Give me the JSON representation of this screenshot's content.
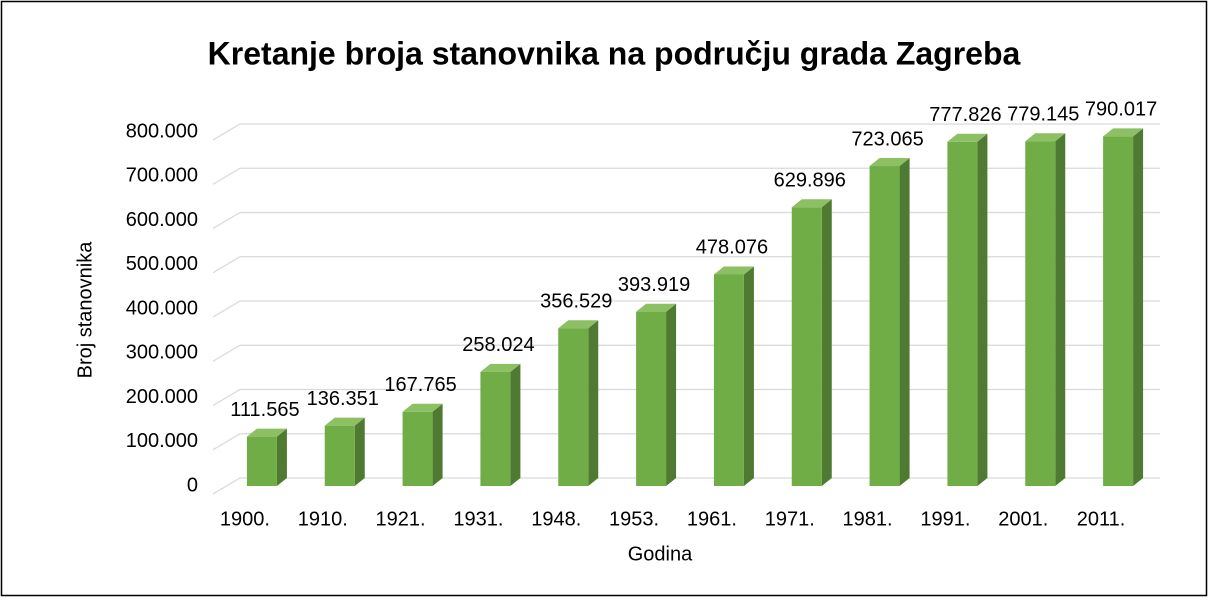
{
  "chart_data": {
    "type": "bar3d",
    "title": "Kretanje broja stanovnika na području grada Zagreba",
    "x_label": "Godina",
    "y_label": "Broj stanovnika",
    "categories": [
      "1900.",
      "1910.",
      "1921.",
      "1931.",
      "1948.",
      "1953.",
      "1961.",
      "1971.",
      "1981.",
      "1991.",
      "2001.",
      "2011."
    ],
    "values": [
      111565,
      136351,
      167765,
      258024,
      356529,
      393919,
      478076,
      629896,
      723065,
      777826,
      779145,
      790017
    ],
    "value_labels": [
      "111.565",
      "136.351",
      "167.765",
      "258.024",
      "356.529",
      "393.919",
      "478.076",
      "629.896",
      "723.065",
      "777.826",
      "779.145",
      "790.017"
    ],
    "color": "#70ad47",
    "ylim": [
      0,
      800000
    ],
    "yticks": [
      0,
      {
        "value": 100000,
        "label": "100.000"
      },
      {
        "value": 200000,
        "label": "200.000"
      },
      {
        "value": 300000,
        "label": "300.000"
      },
      {
        "value": 400000,
        "label": "400.000"
      },
      {
        "value": 500000,
        "label": "500.000"
      },
      {
        "value": 600000,
        "label": "600.000"
      },
      {
        "value": 700000,
        "label": "700.000"
      },
      {
        "value": 800000,
        "label": "800.000"
      }
    ],
    "grid": true
  }
}
